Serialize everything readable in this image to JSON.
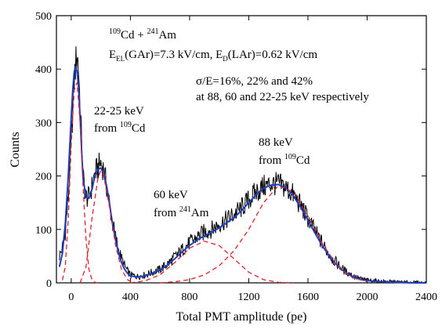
{
  "chart_data": {
    "type": "line",
    "xlabel": "Total PMT amplitude (pe)",
    "ylabel": "Counts",
    "xlim": [
      -100,
      2400
    ],
    "ylim": [
      0,
      500
    ],
    "x_ticks": [
      0,
      400,
      800,
      1200,
      1600,
      2000,
      2400
    ],
    "y_ticks": [
      0,
      100,
      200,
      300,
      400,
      500
    ],
    "grid": false,
    "legend": "none",
    "colors": {
      "data": "#000000",
      "fit": "#1f3fbf",
      "components": "#e0202a"
    },
    "series": [
      {
        "role": "data histogram",
        "style": "noisy black line",
        "x": [
          -80,
          -60,
          -40,
          -20,
          0,
          10,
          20,
          30,
          40,
          50,
          60,
          70,
          80,
          100,
          120,
          140,
          160,
          180,
          200,
          220,
          240,
          260,
          280,
          300,
          320,
          340,
          360,
          380,
          400,
          450,
          500,
          550,
          600,
          650,
          700,
          750,
          800,
          850,
          900,
          950,
          1000,
          1050,
          1100,
          1150,
          1200,
          1250,
          1300,
          1350,
          1400,
          1450,
          1500,
          1550,
          1600,
          1650,
          1700,
          1750,
          1800,
          1850,
          1900,
          1950,
          2000,
          2100,
          2200,
          2300,
          2400
        ],
        "y": [
          50,
          65,
          95,
          160,
          260,
          320,
          380,
          410,
          430,
          400,
          330,
          270,
          200,
          160,
          160,
          180,
          205,
          215,
          225,
          212,
          180,
          145,
          110,
          85,
          62,
          45,
          32,
          22,
          15,
          12,
          15,
          20,
          25,
          35,
          48,
          62,
          75,
          85,
          95,
          100,
          110,
          118,
          128,
          140,
          155,
          170,
          180,
          185,
          185,
          178,
          165,
          145,
          120,
          95,
          72,
          50,
          35,
          22,
          14,
          8,
          5,
          3,
          2,
          1,
          0
        ]
      },
      {
        "role": "total fit",
        "style": "blue solid",
        "x": [
          -80,
          -60,
          -40,
          -20,
          0,
          10,
          20,
          30,
          40,
          50,
          60,
          70,
          80,
          100,
          120,
          140,
          160,
          180,
          200,
          220,
          240,
          260,
          280,
          300,
          320,
          340,
          360,
          380,
          400,
          450,
          500,
          550,
          600,
          650,
          700,
          750,
          800,
          850,
          900,
          950,
          1000,
          1050,
          1100,
          1150,
          1200,
          1250,
          1300,
          1350,
          1400,
          1450,
          1500,
          1550,
          1600,
          1650,
          1700,
          1750,
          1800,
          1850,
          1900,
          1950,
          2000,
          2100,
          2200,
          2300,
          2400
        ],
        "y": [
          30,
          55,
          110,
          200,
          310,
          360,
          395,
          405,
          395,
          365,
          310,
          250,
          195,
          160,
          158,
          175,
          200,
          212,
          215,
          205,
          180,
          145,
          110,
          80,
          56,
          38,
          26,
          18,
          13,
          11,
          13,
          18,
          24,
          33,
          45,
          58,
          70,
          80,
          88,
          95,
          103,
          112,
          122,
          135,
          150,
          165,
          177,
          183,
          184,
          178,
          163,
          142,
          117,
          92,
          68,
          48,
          32,
          20,
          12,
          7,
          4,
          2,
          1,
          0,
          0
        ]
      },
      {
        "role": "component: peak near 40 pe",
        "style": "red dashed",
        "x": [
          -60,
          -40,
          -20,
          0,
          20,
          40,
          60,
          80,
          100,
          120,
          140,
          160,
          180
        ],
        "y": [
          5,
          30,
          120,
          260,
          360,
          375,
          300,
          180,
          80,
          25,
          6,
          1,
          0
        ]
      },
      {
        "role": "component: 22-25 keV from 109Cd",
        "style": "red dashed",
        "x": [
          60,
          100,
          140,
          180,
          200,
          220,
          260,
          300,
          340,
          380,
          420
        ],
        "y": [
          0,
          30,
          120,
          195,
          210,
          200,
          140,
          70,
          25,
          6,
          0
        ]
      },
      {
        "role": "component: 60 keV from 241Am",
        "style": "red dashed",
        "x": [
          400,
          500,
          600,
          700,
          800,
          900,
          1000,
          1100,
          1200,
          1300,
          1400,
          1500
        ],
        "y": [
          0,
          4,
          15,
          38,
          65,
          78,
          70,
          45,
          20,
          6,
          1,
          0
        ]
      },
      {
        "role": "component: 88 keV from 109Cd",
        "style": "red dashed",
        "x": [
          600,
          700,
          800,
          900,
          1000,
          1100,
          1200,
          1300,
          1400,
          1500,
          1600,
          1700,
          1800,
          1900,
          2000
        ],
        "y": [
          0,
          2,
          6,
          15,
          32,
          60,
          100,
          150,
          182,
          170,
          125,
          72,
          32,
          10,
          2
        ]
      }
    ],
    "annotations": {
      "source": {
        "mass_cd": "109",
        "elem_cd": "Cd + ",
        "mass_am": "241",
        "elem_am": "Am"
      },
      "fields": {
        "p1": "E",
        "s1": "EL",
        "p2": "(GAr)=7.3 kV/cm, E",
        "s2": "D",
        "p3": "(LAr)=0.62 kV/cm"
      },
      "resolution_line1": "σ/E=16%, 22% and 42%",
      "resolution_line2": "at 88, 60 and 22-25 keV respectively",
      "peak1_line1": "22-25 keV",
      "peak1_from": "from ",
      "peak1_mass": "109",
      "peak1_elem": "Cd",
      "peak2_line1": "60 keV",
      "peak2_from": "from ",
      "peak2_mass": "241",
      "peak2_elem": "Am",
      "peak3_line1": "88 keV",
      "peak3_from": "from ",
      "peak3_mass": "109",
      "peak3_elem": "Cd"
    }
  }
}
